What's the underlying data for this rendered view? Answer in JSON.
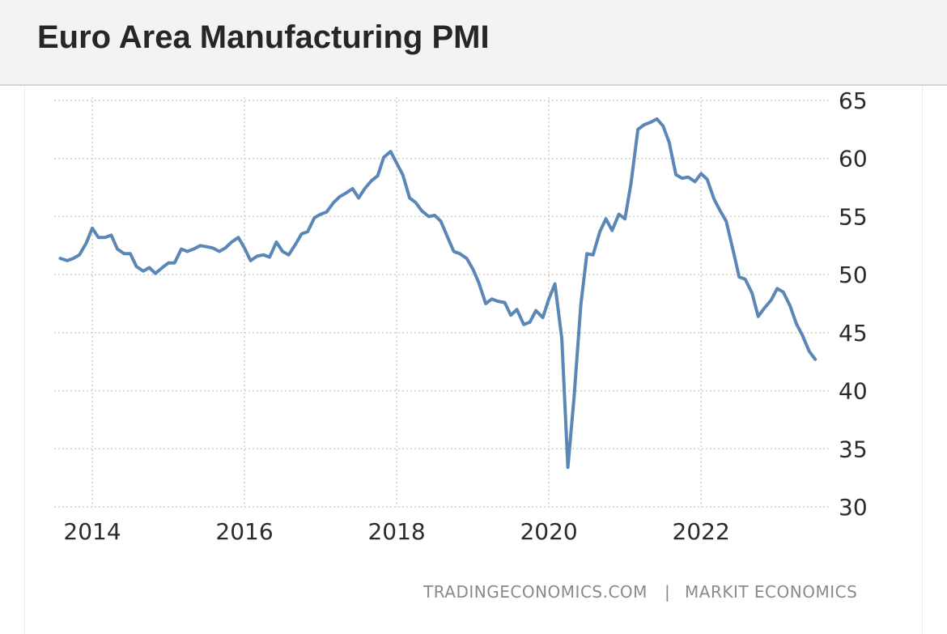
{
  "header": {
    "title": "Euro Area Manufacturing PMI"
  },
  "source": {
    "left": "TRADINGECONOMICS.COM",
    "separator": "|",
    "right": "MARKIT  ECONOMICS"
  },
  "colors": {
    "line": "#5a87b5",
    "grid": "#cfcfcf",
    "header_bg": "#f3f3f3"
  },
  "chart_data": {
    "type": "line",
    "title": "Euro Area Manufacturing PMI",
    "xlabel": "",
    "ylabel": "",
    "ylim": [
      30,
      65
    ],
    "xlim": [
      2013.5,
      2023.7
    ],
    "y_axis_position": "right",
    "grid": true,
    "x_ticks": [
      2014,
      2016,
      2018,
      2020,
      2022
    ],
    "y_ticks": [
      30,
      35,
      40,
      45,
      50,
      55,
      60,
      65
    ],
    "series": [
      {
        "x": [
          2013.58,
          2013.67,
          2013.75,
          2013.83,
          2013.92,
          2014.0,
          2014.08,
          2014.17,
          2014.25,
          2014.33,
          2014.42,
          2014.5,
          2014.58,
          2014.67,
          2014.75,
          2014.83,
          2014.92,
          2015.0,
          2015.08,
          2015.17,
          2015.25,
          2015.33,
          2015.42,
          2015.5,
          2015.58,
          2015.67,
          2015.75,
          2015.83,
          2015.92,
          2016.0,
          2016.08,
          2016.17,
          2016.25,
          2016.33,
          2016.42,
          2016.5,
          2016.58,
          2016.67,
          2016.75,
          2016.83,
          2016.92,
          2017.0,
          2017.08,
          2017.17,
          2017.25,
          2017.33,
          2017.42,
          2017.5,
          2017.58,
          2017.67,
          2017.75,
          2017.83,
          2017.92,
          2018.0,
          2018.08,
          2018.17,
          2018.25,
          2018.33,
          2018.42,
          2018.5,
          2018.58,
          2018.67,
          2018.75,
          2018.83,
          2018.92,
          2019.0,
          2019.08,
          2019.17,
          2019.25,
          2019.33,
          2019.42,
          2019.5,
          2019.58,
          2019.67,
          2019.75,
          2019.83,
          2019.92,
          2020.0,
          2020.08,
          2020.17,
          2020.25,
          2020.33,
          2020.42,
          2020.5,
          2020.58,
          2020.67,
          2020.75,
          2020.83,
          2020.92,
          2021.0,
          2021.08,
          2021.17,
          2021.25,
          2021.33,
          2021.42,
          2021.5,
          2021.58,
          2021.67,
          2021.75,
          2021.83,
          2021.92,
          2022.0,
          2022.08,
          2022.17,
          2022.25,
          2022.33,
          2022.42,
          2022.5,
          2022.58,
          2022.67,
          2022.75,
          2022.83,
          2022.92,
          2023.0,
          2023.08,
          2023.17,
          2023.25,
          2023.33,
          2023.42,
          2023.5
        ],
        "y": [
          51.4,
          51.2,
          51.4,
          51.7,
          52.7,
          54.0,
          53.2,
          53.2,
          53.4,
          52.2,
          51.8,
          51.8,
          50.7,
          50.3,
          50.6,
          50.1,
          50.6,
          51.0,
          51.0,
          52.2,
          52.0,
          52.2,
          52.5,
          52.4,
          52.3,
          52.0,
          52.3,
          52.8,
          53.2,
          52.3,
          51.2,
          51.6,
          51.7,
          51.5,
          52.8,
          52.0,
          51.7,
          52.6,
          53.5,
          53.7,
          54.9,
          55.2,
          55.4,
          56.2,
          56.7,
          57.0,
          57.4,
          56.6,
          57.4,
          58.1,
          58.5,
          60.1,
          60.6,
          59.6,
          58.6,
          56.6,
          56.2,
          55.5,
          55.0,
          55.1,
          54.6,
          53.2,
          52.0,
          51.8,
          51.4,
          50.5,
          49.3,
          47.5,
          47.9,
          47.7,
          47.6,
          46.5,
          47.0,
          45.7,
          45.9,
          46.9,
          46.3,
          47.9,
          49.2,
          44.5,
          33.4,
          39.4,
          47.4,
          51.8,
          51.7,
          53.7,
          54.8,
          53.8,
          55.2,
          54.8,
          57.9,
          62.5,
          62.9,
          63.1,
          63.4,
          62.8,
          61.4,
          58.6,
          58.3,
          58.4,
          58.0,
          58.7,
          58.2,
          56.5,
          55.5,
          54.6,
          52.1,
          49.8,
          49.6,
          48.4,
          46.4,
          47.1,
          47.8,
          48.8,
          48.5,
          47.3,
          45.8,
          44.8,
          43.4,
          42.7
        ]
      }
    ]
  }
}
